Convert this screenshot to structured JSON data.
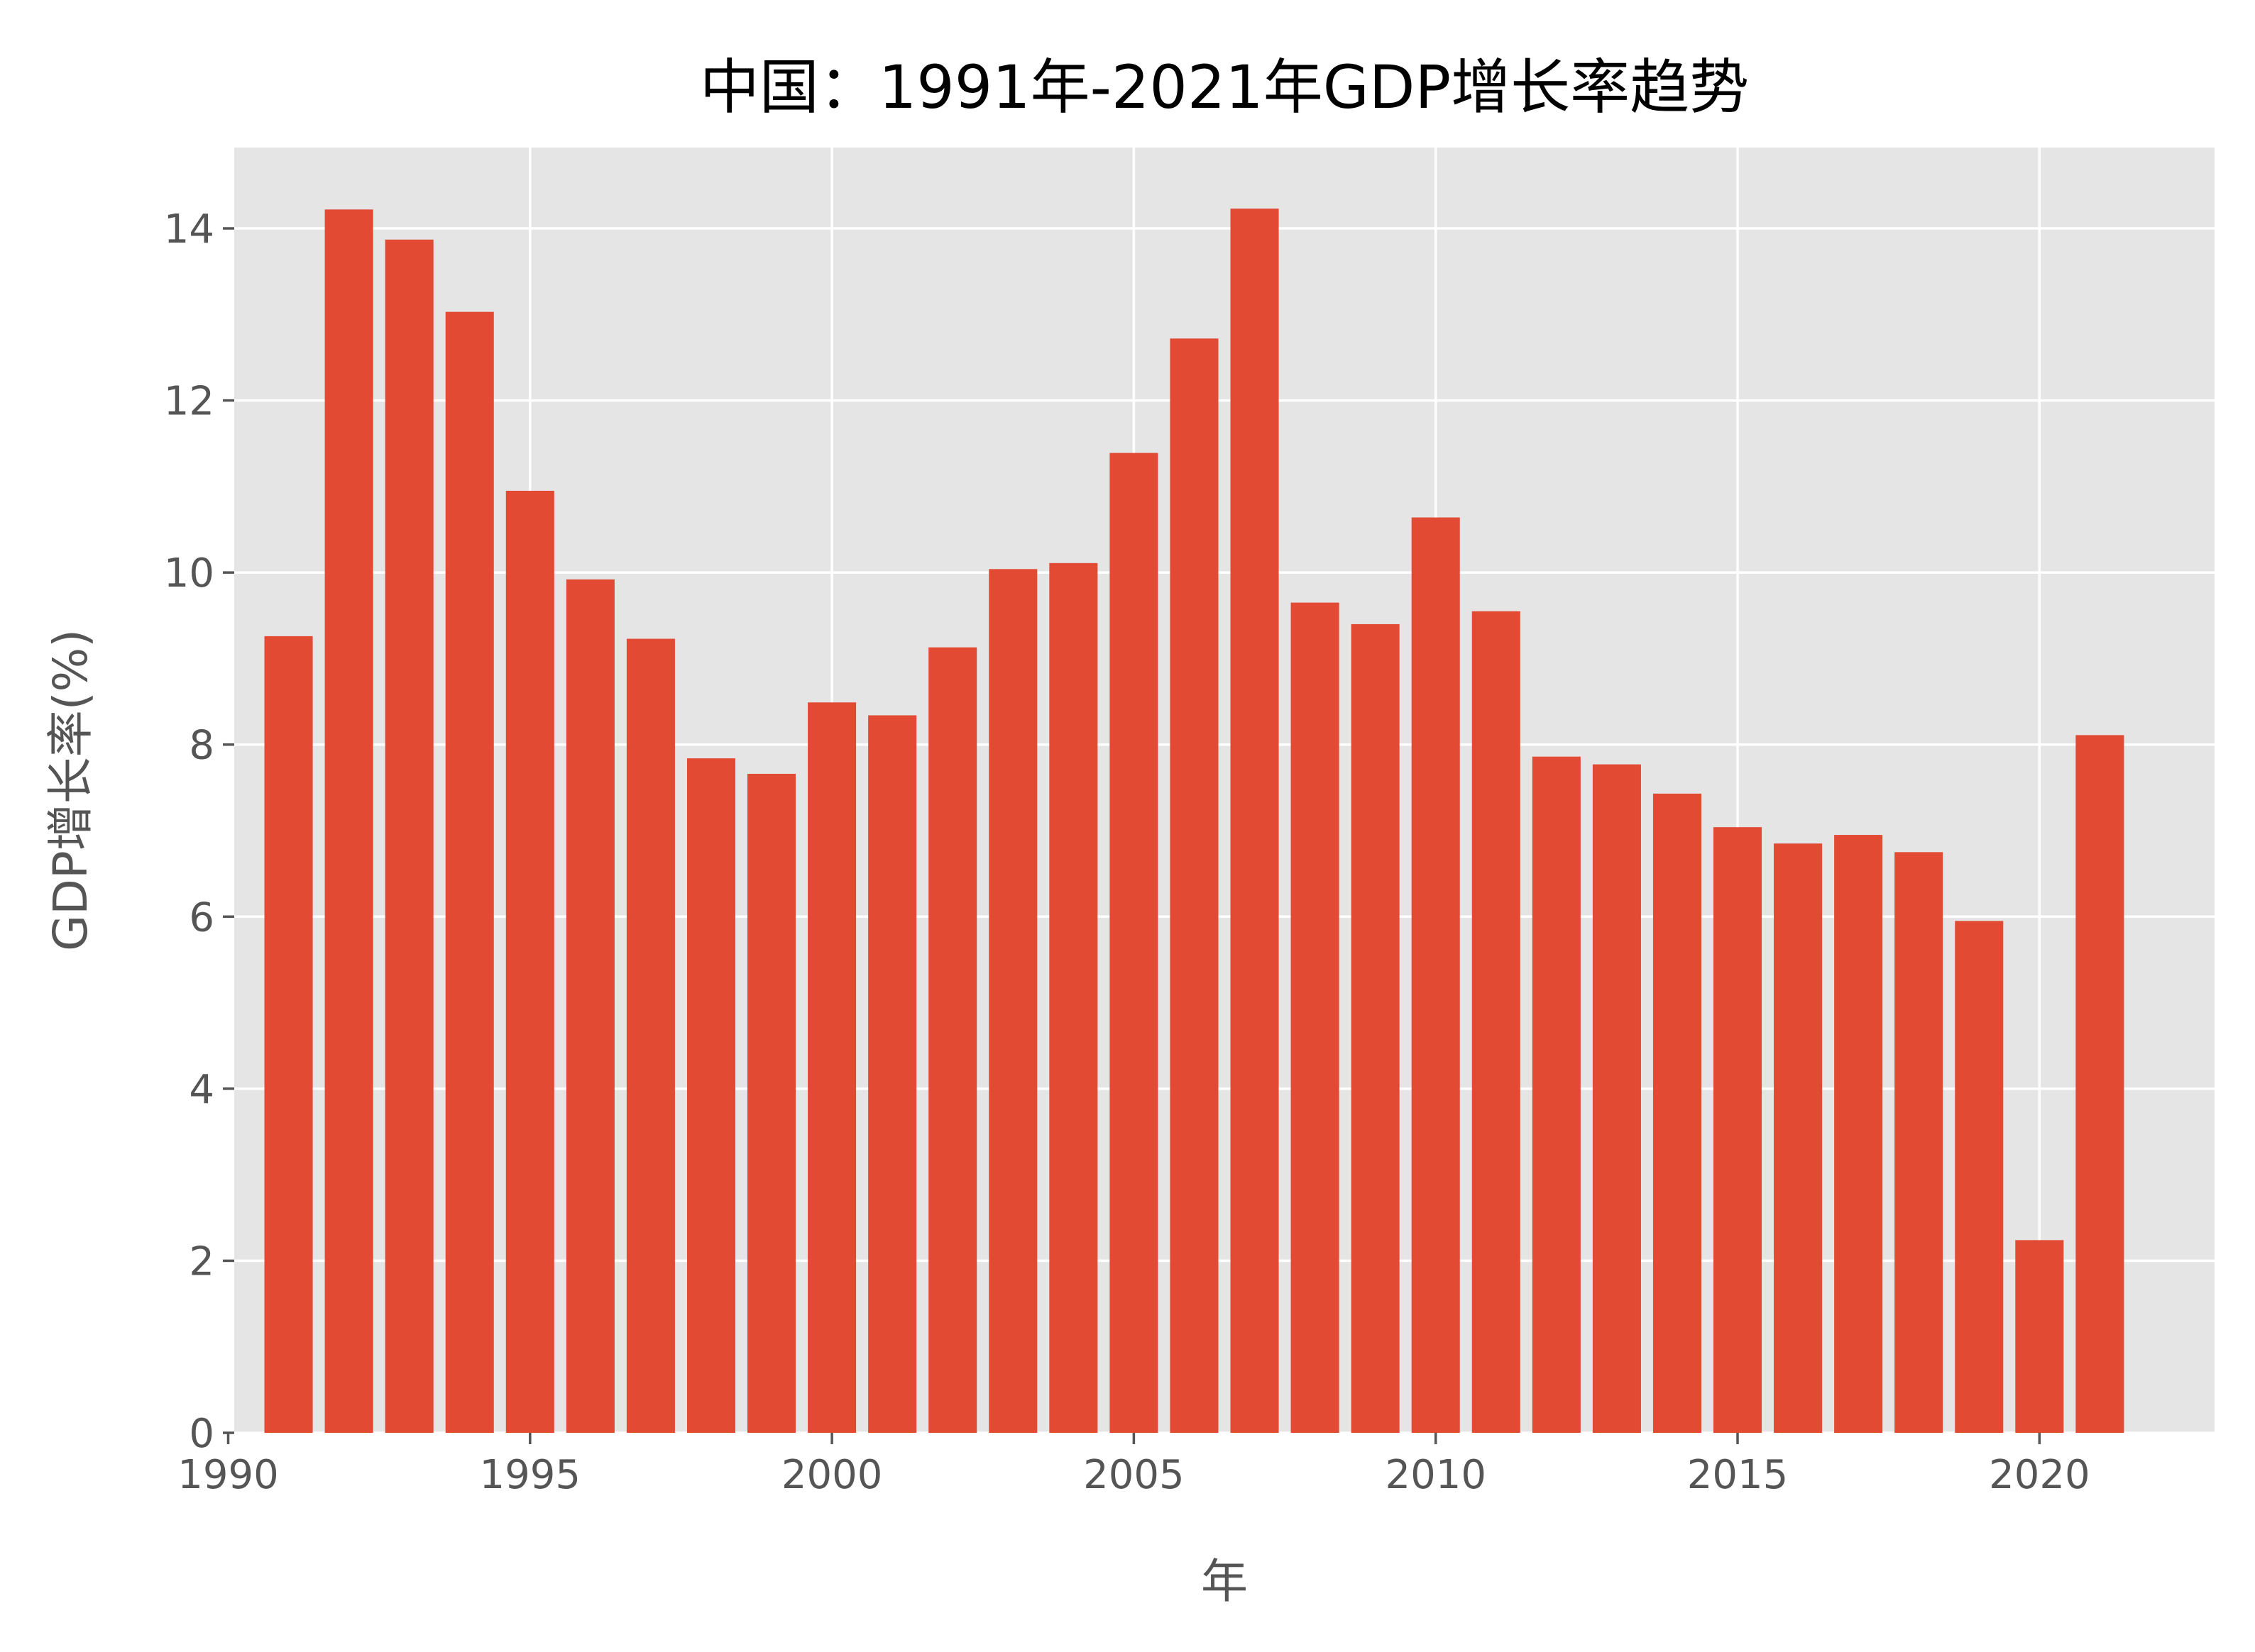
{
  "chart_data": {
    "type": "bar",
    "title": "中国：1991年-2021年GDP增长率趋势",
    "xlabel": "年",
    "ylabel": "GDP增长率(%)",
    "x": [
      1991,
      1992,
      1993,
      1994,
      1995,
      1996,
      1997,
      1998,
      1999,
      2000,
      2001,
      2002,
      2003,
      2004,
      2005,
      2006,
      2007,
      2008,
      2009,
      2010,
      2011,
      2012,
      2013,
      2014,
      2015,
      2016,
      2017,
      2018,
      2019,
      2020,
      2021
    ],
    "values": [
      9.26,
      14.22,
      13.87,
      13.03,
      10.95,
      9.92,
      9.23,
      7.84,
      7.66,
      8.49,
      8.34,
      9.13,
      10.04,
      10.11,
      11.39,
      12.72,
      14.23,
      9.65,
      9.4,
      10.64,
      9.55,
      7.86,
      7.77,
      7.43,
      7.04,
      6.85,
      6.95,
      6.75,
      5.95,
      2.24,
      8.11
    ],
    "xlim": [
      1990.1,
      2022.9
    ],
    "ylim": [
      0,
      14.94
    ],
    "xticks": [
      1990,
      1995,
      2000,
      2005,
      2010,
      2015,
      2020
    ],
    "yticks": [
      0,
      2,
      4,
      6,
      8,
      10,
      12,
      14
    ],
    "grid": true,
    "bar_color": "#E24A33",
    "background_color": "#E5E5E5",
    "grid_color": "#FFFFFF"
  }
}
